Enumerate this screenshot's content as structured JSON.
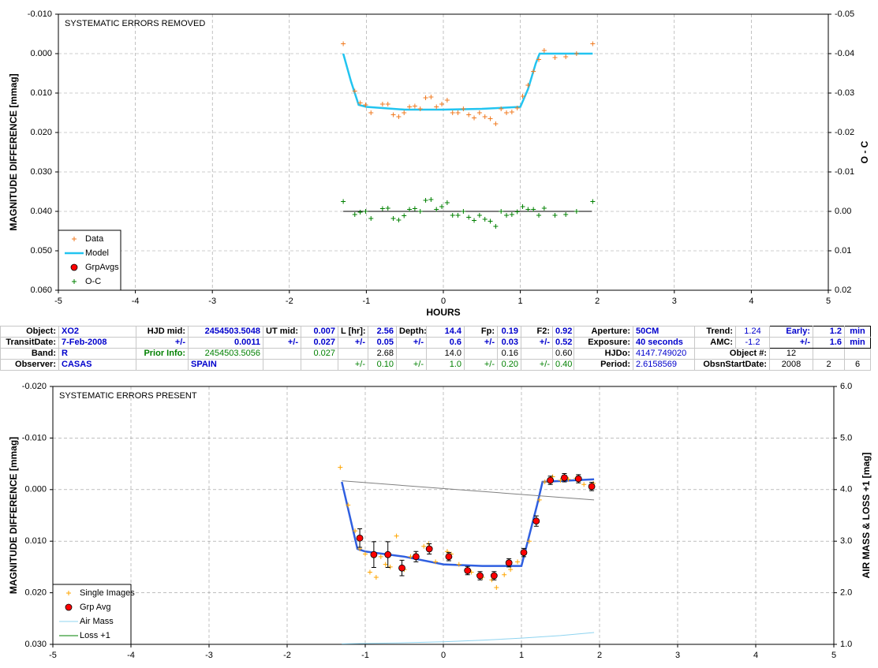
{
  "chart_data": [
    {
      "type": "scatter",
      "annotation": "SYSTEMATIC ERRORS REMOVED",
      "xlabel": "HOURS",
      "ylabel": "MAGNITUDE DIFFERENCE [mmag]",
      "y2label": "O - C",
      "xlim": [
        -5,
        5
      ],
      "xticks": [
        -5,
        -4,
        -3,
        -2,
        -1,
        0,
        1,
        2,
        3,
        4,
        5
      ],
      "ylim": [
        -0.01,
        0.06
      ],
      "y_inverted": true,
      "yticks": [
        {
          "value": -0.01,
          "label": "-0.010"
        },
        {
          "value": 0,
          "label": "0.000"
        },
        {
          "value": 0.01,
          "label": "0.010"
        },
        {
          "value": 0.02,
          "label": "0.020"
        },
        {
          "value": 0.03,
          "label": "0.030"
        },
        {
          "value": 0.04,
          "label": "0.040"
        },
        {
          "value": 0.05,
          "label": "0.050"
        },
        {
          "value": 0.06,
          "label": "0.060"
        }
      ],
      "y2lim": [
        -0.05,
        0.02
      ],
      "y2_inverted": true,
      "y2ticks": [
        {
          "value": -0.05,
          "label": "-0.05"
        },
        {
          "value": -0.04,
          "label": "-0.04"
        },
        {
          "value": -0.03,
          "label": "-0.03"
        },
        {
          "value": -0.02,
          "label": "-0.02"
        },
        {
          "value": -0.01,
          "label": "-0.01"
        },
        {
          "value": 0,
          "label": "0.00"
        },
        {
          "value": 0.01,
          "label": "0.01"
        },
        {
          "value": 0.02,
          "label": "0.02"
        }
      ],
      "grid": true,
      "legend": "lower left",
      "series": [
        {
          "name": "Data",
          "style": "plus",
          "color": "#f07a20",
          "x": [
            -1.3,
            -1.15,
            -1.08,
            -1.01,
            -0.94,
            -0.79,
            -0.72,
            -0.65,
            -0.58,
            -0.51,
            -0.44,
            -0.37,
            -0.3,
            -0.23,
            -0.16,
            -0.09,
            -0.02,
            0.05,
            0.12,
            0.19,
            0.26,
            0.33,
            0.4,
            0.47,
            0.54,
            0.61,
            0.68,
            0.75,
            0.82,
            0.89,
            0.96,
            1.03,
            1.1,
            1.17,
            1.24,
            1.31,
            1.45,
            1.59,
            1.73,
            1.94
          ],
          "values": [
            -0.0025,
            0.0095,
            0.0125,
            0.013,
            0.015,
            0.0128,
            0.0128,
            0.0155,
            0.016,
            0.015,
            0.0135,
            0.0133,
            0.014,
            0.0112,
            0.011,
            0.0135,
            0.0128,
            0.0118,
            0.015,
            0.015,
            0.014,
            0.0155,
            0.0163,
            0.015,
            0.016,
            0.0165,
            0.0178,
            0.014,
            0.015,
            0.0148,
            0.0138,
            0.0108,
            0.008,
            0.0045,
            0.0015,
            -0.0008,
            0.001,
            0.0008,
            0,
            -0.0025
          ]
        },
        {
          "name": "Model",
          "style": "line",
          "color": "#22c4f0",
          "line_width": 2.5,
          "x": [
            -1.3,
            -1.2,
            -1.1,
            -1.0,
            -0.5,
            0.0,
            0.5,
            1.0,
            1.1,
            1.2,
            1.25,
            1.3,
            1.94
          ],
          "values": [
            0,
            0.007,
            0.013,
            0.0135,
            0.0142,
            0.0142,
            0.014,
            0.0135,
            0.009,
            0.0025,
            0,
            0,
            0
          ]
        },
        {
          "name": "GrpAvgs",
          "style": "circle",
          "color": "#ff0000",
          "x": [],
          "values": []
        },
        {
          "name": "O-C",
          "style": "plus",
          "color": "#008000",
          "axis": "y2",
          "x": [
            -1.3,
            -1.15,
            -1.08,
            -1.01,
            -0.94,
            -0.79,
            -0.72,
            -0.65,
            -0.58,
            -0.51,
            -0.44,
            -0.37,
            -0.3,
            -0.23,
            -0.16,
            -0.09,
            -0.02,
            0.05,
            0.12,
            0.19,
            0.26,
            0.33,
            0.4,
            0.47,
            0.54,
            0.61,
            0.68,
            0.75,
            0.82,
            0.89,
            0.96,
            1.03,
            1.1,
            1.17,
            1.24,
            1.31,
            1.45,
            1.59,
            1.73,
            1.94
          ],
          "values": [
            -0.0025,
            0.0008,
            0.0002,
            0,
            0.0018,
            -0.0007,
            -0.0008,
            0.0018,
            0.0022,
            0.0011,
            -0.0005,
            -0.0007,
            0,
            -0.0028,
            -0.003,
            -0.0005,
            -0.0012,
            -0.0022,
            0.001,
            0.001,
            0,
            0.0015,
            0.0023,
            0.001,
            0.002,
            0.0025,
            0.0038,
            0,
            0.001,
            0.0008,
            0.0001,
            -0.0012,
            -0.0005,
            -0.0005,
            0.001,
            -0.0008,
            0.001,
            0.0008,
            0,
            -0.0025
          ]
        },
        {
          "style": "line",
          "color": "#000000",
          "axis": "y2",
          "line_width": 1,
          "x": [
            -1.3,
            1.93
          ],
          "values": [
            0,
            0
          ]
        }
      ]
    },
    {
      "type": "scatter",
      "annotation": "SYSTEMATIC ERRORS PRESENT",
      "ylabel": "MAGNITUDE DIFFERENCE [mmag]",
      "y2label": "AIR MASS & LOSS +1 [mag]",
      "xlim": [
        -5,
        5
      ],
      "xticks": [
        -5,
        -4,
        -3,
        -2,
        -1,
        0,
        1,
        2,
        3,
        4,
        5
      ],
      "ylim": [
        -0.02,
        0.03
      ],
      "y_inverted": true,
      "yticks": [
        {
          "value": -0.02,
          "label": "-0.020"
        },
        {
          "value": -0.01,
          "label": "-0.010"
        },
        {
          "value": 0,
          "label": "0.000"
        },
        {
          "value": 0.01,
          "label": "0.010"
        },
        {
          "value": 0.02,
          "label": "0.020"
        },
        {
          "value": 0.03,
          "label": "0.030"
        }
      ],
      "y2lim": [
        1,
        6
      ],
      "y2_inverted": false,
      "y2ticks": [
        {
          "value": 1,
          "label": "1.0"
        },
        {
          "value": 2,
          "label": "2.0"
        },
        {
          "value": 3,
          "label": "3.0"
        },
        {
          "value": 4,
          "label": "4.0"
        },
        {
          "value": 5,
          "label": "5.0"
        },
        {
          "value": 6,
          "label": "6.0"
        }
      ],
      "grid": true,
      "legend": "lower left",
      "series": [
        {
          "name": "Single Images",
          "style": "plus",
          "color": "#ffa500",
          "x": [
            -1.32,
            -1.22,
            -1.13,
            -1.07,
            -1.0,
            -0.94,
            -0.86,
            -0.8,
            -0.74,
            -0.68,
            -0.6,
            -0.5,
            -0.42,
            -0.35,
            -0.25,
            -0.19,
            -0.1,
            0.05,
            0.1,
            0.2,
            0.3,
            0.36,
            0.45,
            0.5,
            0.62,
            0.68,
            0.78,
            0.86,
            0.95,
            1.03,
            1.1,
            1.17,
            1.23,
            1.3,
            1.4,
            1.5,
            1.6,
            1.7,
            1.8,
            1.92
          ],
          "values": [
            -0.0043,
            0.003,
            0.008,
            0.0115,
            0.0125,
            0.016,
            0.017,
            0.013,
            0.0145,
            0.015,
            0.009,
            0.0155,
            0.013,
            0.0125,
            0.011,
            0.0105,
            0.014,
            0.012,
            0.0125,
            0.0145,
            0.0155,
            0.016,
            0.0165,
            0.017,
            0.0175,
            0.019,
            0.0165,
            0.0155,
            0.014,
            0.0125,
            0.01,
            0.006,
            0.002,
            -0.0015,
            -0.0025,
            -0.0018,
            -0.002,
            -0.0022,
            -0.001,
            -0.0012
          ]
        },
        {
          "name": "Grp Avg",
          "style": "circle",
          "color": "#ff0000",
          "x": [
            -1.07,
            -0.89,
            -0.71,
            -0.53,
            -0.35,
            -0.18,
            0.07,
            0.31,
            0.47,
            0.65,
            0.84,
            1.03,
            1.19,
            1.37,
            1.55,
            1.73,
            1.9
          ],
          "values": [
            0.0094,
            0.0126,
            0.0126,
            0.0152,
            0.013,
            0.0115,
            0.013,
            0.0157,
            0.0167,
            0.0167,
            0.0142,
            0.0122,
            0.0061,
            -0.0018,
            -0.0023,
            -0.0021,
            -0.0006
          ],
          "errors": [
            0.0018,
            0.0025,
            0.0025,
            0.0015,
            0.001,
            0.001,
            0.0008,
            0.0008,
            0.0008,
            0.0008,
            0.0008,
            0.0008,
            0.001,
            0.0008,
            0.0008,
            0.0008,
            0.0008
          ]
        },
        {
          "name": "Air Mass",
          "style": "line",
          "color": "#8fd4f0",
          "axis": "y2",
          "line_width": 1,
          "x": [
            -1.3,
            -0.5,
            0,
            0.5,
            1,
            1.5,
            1.93
          ],
          "values": [
            1.01,
            1.03,
            1.05,
            1.08,
            1.12,
            1.17,
            1.23
          ]
        },
        {
          "name": "Loss +1",
          "style": "line",
          "color": "#008000",
          "axis": "y2",
          "line_width": 1,
          "x": [],
          "values": []
        },
        {
          "style": "line",
          "color": "#2f5fe0",
          "line_width": 2.5,
          "x": [
            -1.3,
            -1.1,
            -1.0,
            -0.5,
            0,
            0.5,
            1.0,
            1.2,
            1.27,
            1.93
          ],
          "values": [
            -0.0015,
            0.0115,
            0.012,
            0.013,
            0.0145,
            0.0148,
            0.0148,
            0.003,
            -0.0015,
            -0.002
          ]
        },
        {
          "style": "line",
          "color": "#808080",
          "axis": "y2",
          "line_width": 1,
          "x": [
            -1.3,
            1.93
          ],
          "values": [
            4.17,
            3.8
          ]
        }
      ]
    }
  ],
  "table": {
    "rows": [
      [
        "Object:",
        "XO2",
        "HJD mid:",
        "2454503.5048",
        "UT mid:",
        "0.007",
        "L [hr]:",
        "2.56",
        "Depth:",
        "14.4",
        "Fp:",
        "0.19",
        "F2:",
        "0.92",
        "Aperture:",
        "50CM",
        "Trend:",
        "1.24",
        "Early:",
        "1.2",
        "min"
      ],
      [
        "TransitDate:",
        "7-Feb-2008",
        "+/-",
        "0.0011",
        "+/-",
        "0.027",
        "+/-",
        "0.05",
        "+/-",
        "0.6",
        "+/-",
        "0.03",
        "+/-",
        "0.52",
        "Exposure:",
        "40 seconds",
        "AMC:",
        "-1.2",
        "+/-",
        "1.6",
        "min"
      ],
      [
        "Band:",
        "R",
        "Prior Info:",
        "2454503.5056",
        "0.027",
        "2.68",
        "14.0",
        "0.16",
        "0.60",
        "HJDo:",
        "4147.749020",
        "Object #:",
        "12"
      ],
      [
        "Observer:",
        "CASAS",
        "SPAIN",
        "+/-",
        "0.10",
        "+/-",
        "1.0",
        "+/-",
        "0.20",
        "+/-",
        "0.40",
        "Period:",
        "2.6158569",
        "ObsnStartDate:",
        "2008",
        "2",
        "6"
      ]
    ]
  }
}
